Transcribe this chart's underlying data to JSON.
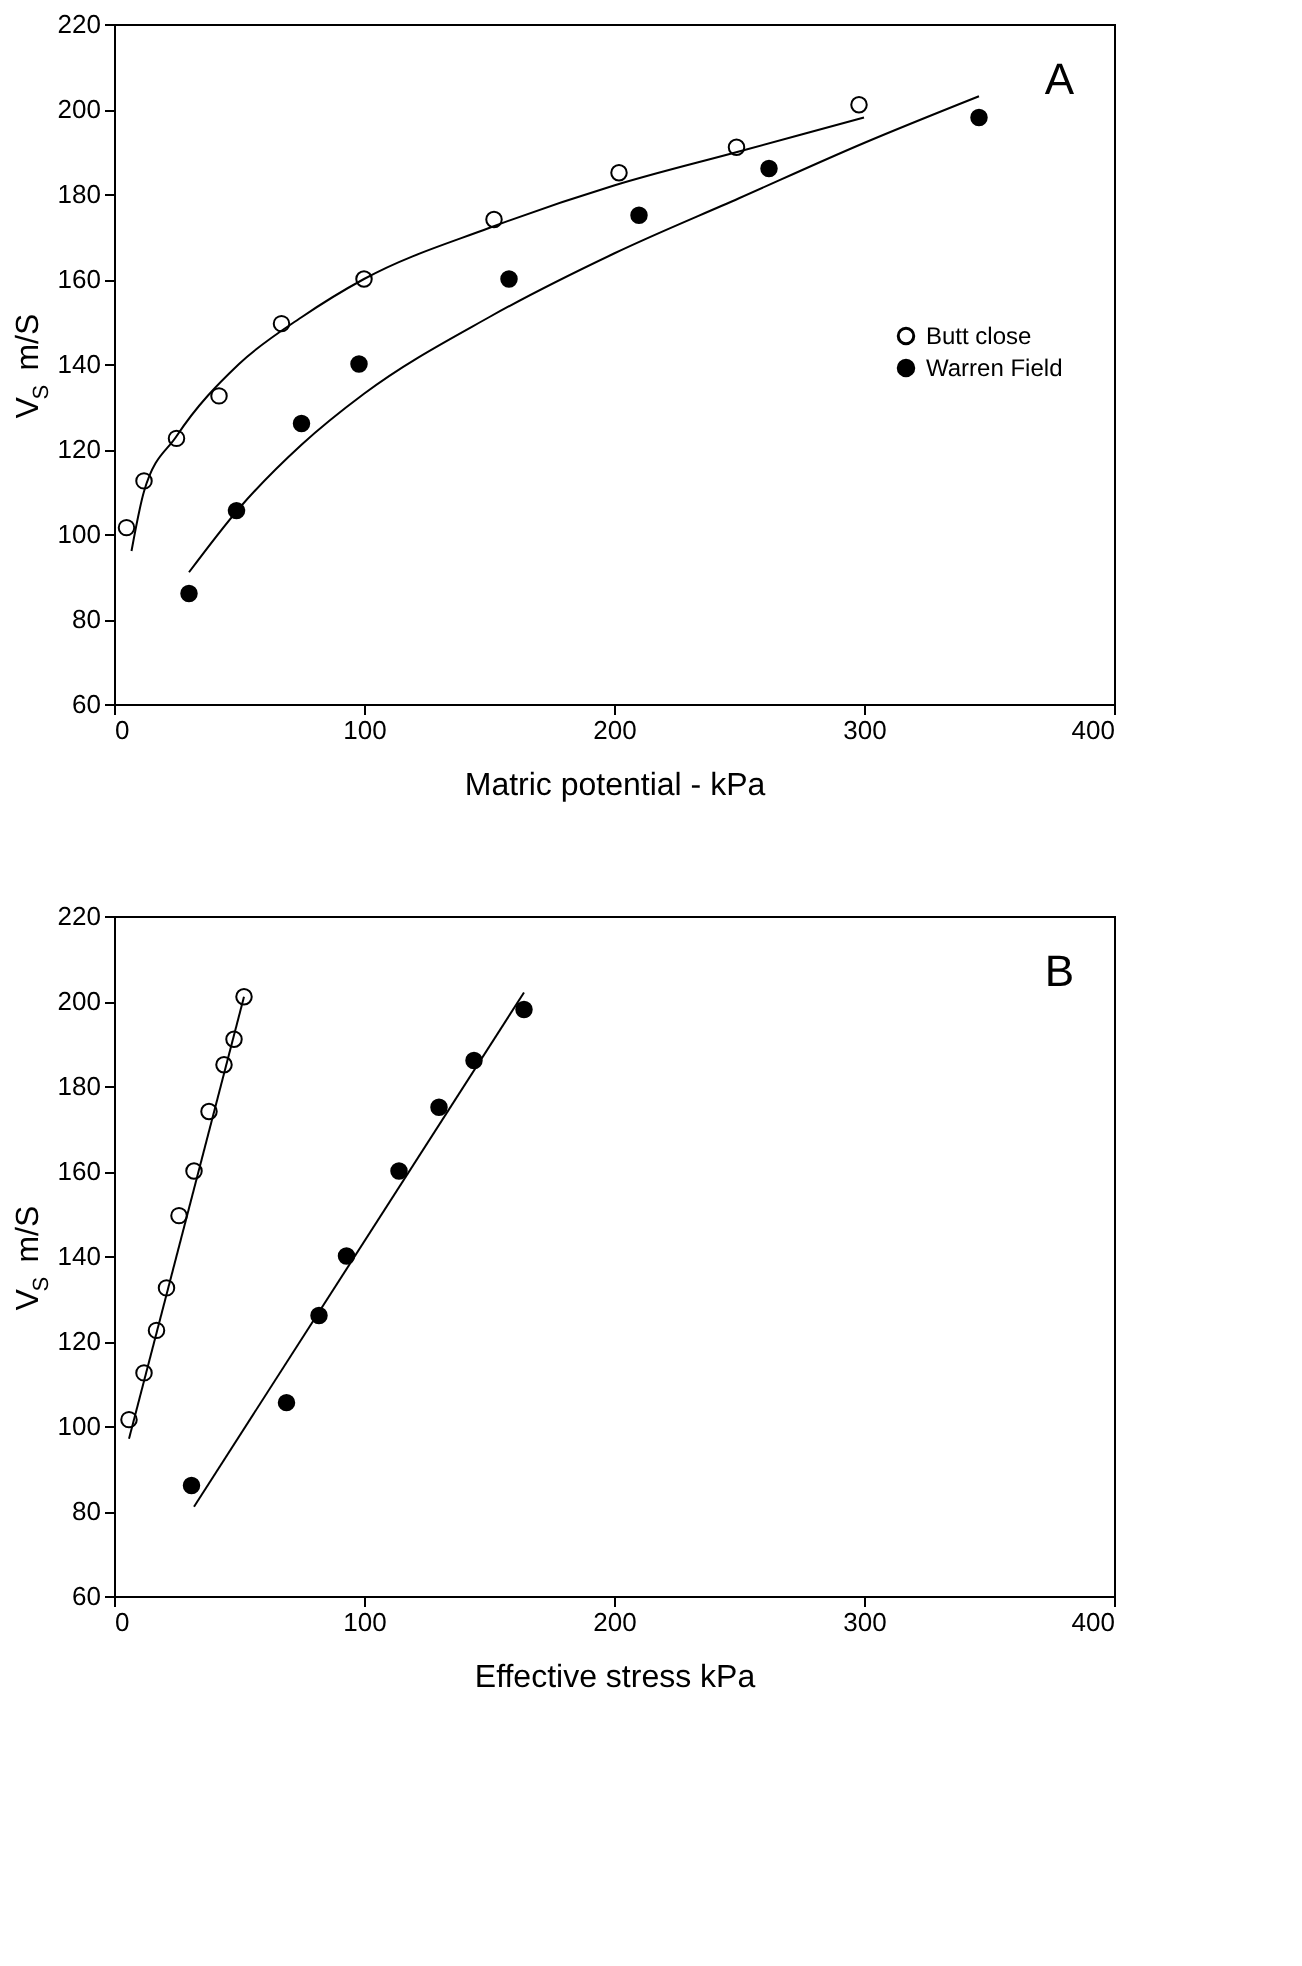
{
  "chart_data": [
    {
      "type": "scatter",
      "xlabel": "Matric potential - kPa",
      "ylabel": "V$_{S}$ m/S",
      "xlim": [
        0,
        400
      ],
      "xticks": [
        0,
        100,
        200,
        300,
        400
      ],
      "ylim": [
        60,
        220
      ],
      "yticks": [
        60,
        80,
        100,
        120,
        140,
        160,
        180,
        200,
        220
      ],
      "grid": false,
      "legend": "right",
      "annotations": [
        "A"
      ],
      "series": [
        {
          "name": "Butt close",
          "type": "scatter",
          "marker": "circle",
          "color": "#000000",
          "x": [
            5,
            12,
            25,
            42,
            67,
            100,
            152,
            202,
            249,
            298
          ],
          "values": [
            101.5,
            112.5,
            122.5,
            132.5,
            149.5,
            160,
            174,
            185,
            191,
            201
          ]
        },
        {
          "name": "Warren Field",
          "type": "scatter",
          "marker": "circle",
          "color": "#000000",
          "x": [
            30,
            49,
            75,
            98,
            158,
            210,
            262,
            346
          ],
          "values": [
            86,
            105.5,
            126,
            140,
            160,
            175,
            186,
            198
          ]
        },
        {
          "type": "line",
          "color": "#000000",
          "x": [
            7,
            12,
            25,
            50,
            75,
            100,
            150,
            200,
            250,
            300
          ],
          "values": [
            96,
            110,
            123,
            140,
            151,
            160,
            172,
            182,
            190,
            198
          ]
        },
        {
          "type": "line",
          "color": "#000000",
          "x": [
            30,
            50,
            75,
            100,
            150,
            200,
            250,
            300,
            346
          ],
          "values": [
            91,
            106,
            121,
            133,
            151,
            166,
            179,
            192,
            203
          ]
        }
      ]
    },
    {
      "type": "scatter",
      "xlabel": "Effective stress kPa",
      "ylabel": "V$_{S}$ m/S",
      "xlim": [
        0,
        400
      ],
      "xticks": [
        0,
        100,
        200,
        300,
        400
      ],
      "ylim": [
        60,
        220
      ],
      "yticks": [
        60,
        80,
        100,
        120,
        140,
        160,
        180,
        200,
        220
      ],
      "grid": false,
      "legend": false,
      "annotations": [
        "B"
      ],
      "series": [
        {
          "type": "scatter",
          "marker": "circle",
          "color": "#000000",
          "x": [
            6,
            12,
            17,
            21,
            26,
            32,
            38,
            44,
            48,
            52
          ],
          "values": [
            101.5,
            112.5,
            122.5,
            132.5,
            149.5,
            160,
            174,
            185,
            191,
            201
          ]
        },
        {
          "type": "scatter",
          "marker": "circle",
          "color": "#000000",
          "x": [
            31,
            69,
            82,
            93,
            114,
            130,
            144,
            164
          ],
          "values": [
            86,
            105.5,
            126,
            140,
            160,
            175,
            186,
            198
          ]
        },
        {
          "type": "line",
          "color": "#000000",
          "x": [
            6,
            52
          ],
          "values": [
            97,
            201
          ]
        },
        {
          "type": "line",
          "color": "#000000",
          "x": [
            32,
            164
          ],
          "values": [
            81,
            202
          ]
        }
      ]
    }
  ]
}
